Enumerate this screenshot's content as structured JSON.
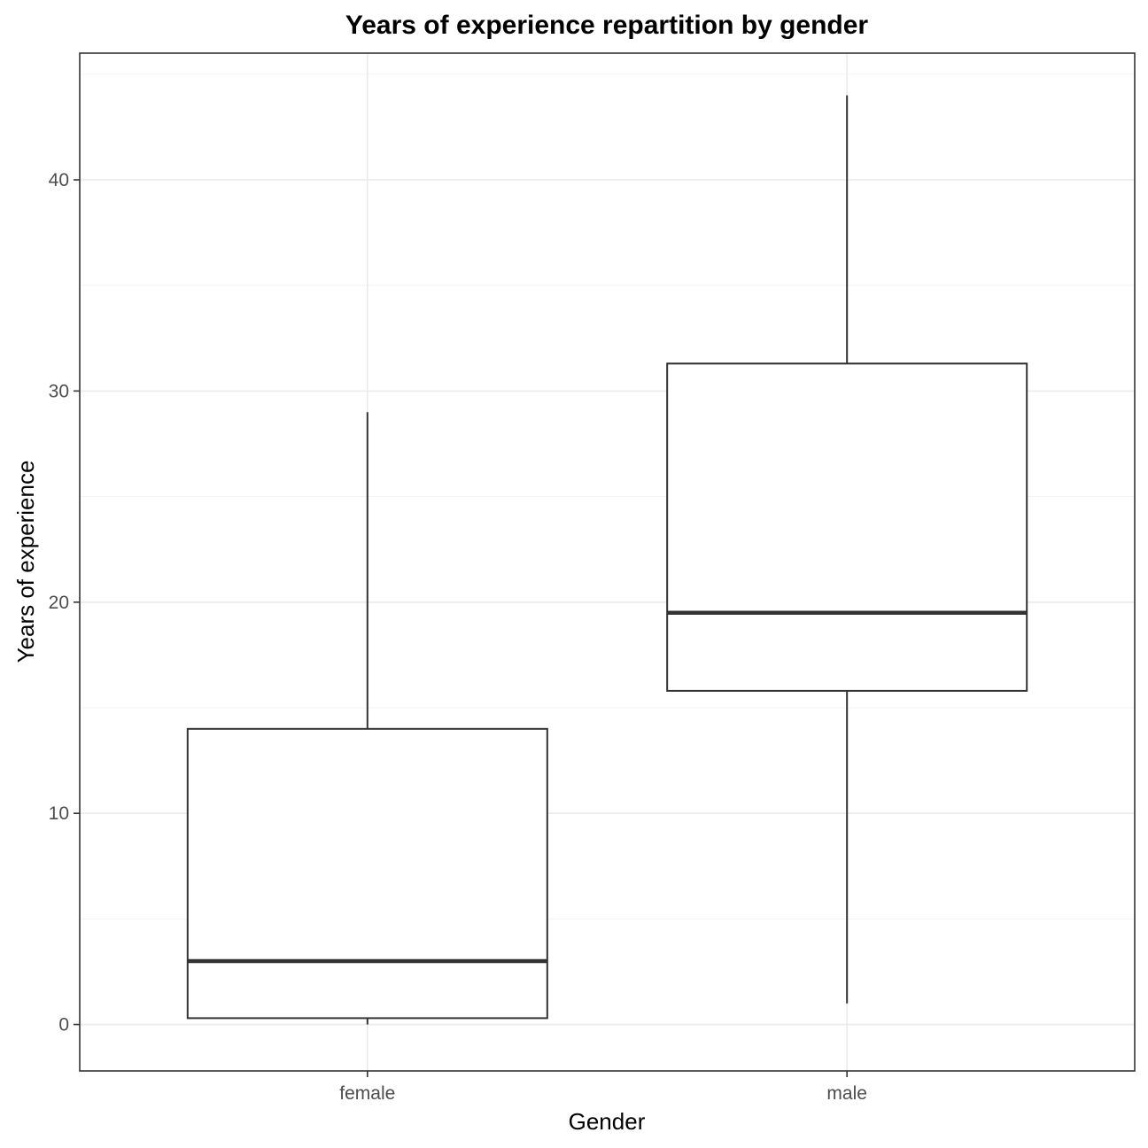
{
  "chart_data": {
    "type": "boxplot",
    "title": "Years of experience repartition by gender",
    "xlabel": "Gender",
    "ylabel": "Years of experience",
    "ylim": [
      -2.2,
      46
    ],
    "y_ticks": [
      0,
      10,
      20,
      30,
      40
    ],
    "y_minor_ticks": [
      5,
      15,
      25,
      35,
      45
    ],
    "grid": true,
    "categories": [
      "female",
      "male"
    ],
    "boxes": [
      {
        "category": "female",
        "whisker_low": 0,
        "q1": 0.3,
        "median": 3,
        "q3": 14,
        "whisker_high": 29
      },
      {
        "category": "male",
        "whisker_low": 1,
        "q1": 15.8,
        "median": 19.5,
        "q3": 31.3,
        "whisker_high": 44
      }
    ],
    "colors": {
      "box_stroke": "#333333",
      "box_fill": "#ffffff",
      "grid": "#ebebeb",
      "tick_text": "#4d4d4d"
    }
  }
}
